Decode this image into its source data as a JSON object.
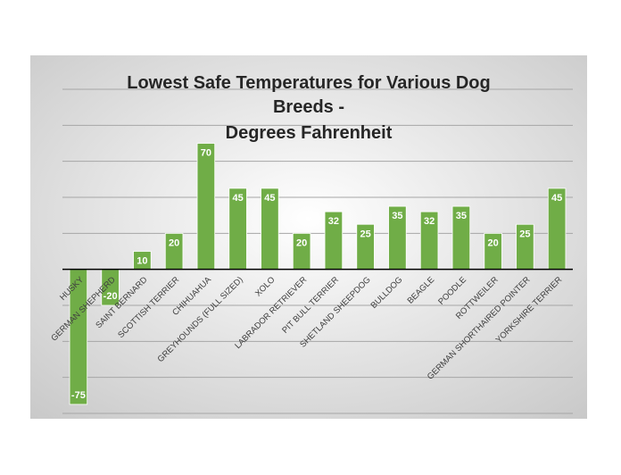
{
  "chart_data": {
    "type": "bar",
    "title_lines": [
      "Lowest Safe Temperatures for Various Dog",
      "Breeds -",
      "Degrees Fahrenheit"
    ],
    "categories": [
      "HUSKY",
      "GERMAN SHEPHERD",
      "SAINT BERNARD",
      "SCOTTISH TERRIER",
      "CHIHUAHUA",
      "GREYHOUNDS (FULL SIZED)",
      "XOLO",
      "LABRADOR RETRIEVER",
      "PIT BULL TERRIER",
      "SHETLAND SHEEPDOG",
      "BULLDOG",
      "BEAGLE",
      "POODLE",
      "ROTTWEILER",
      "GERMAN SHORTHAIRED POINTER",
      "YORKSHIRE TERRIER"
    ],
    "values": [
      -75,
      -20,
      10,
      20,
      70,
      45,
      45,
      20,
      32,
      25,
      35,
      32,
      35,
      20,
      25,
      45
    ],
    "value_labels": [
      "-75",
      "-20",
      "10",
      "20",
      "70",
      "45",
      "45",
      "20",
      "32",
      "25",
      "35",
      "32",
      "35",
      "20",
      "25",
      "45"
    ],
    "ylim": [
      -80,
      100
    ],
    "gridline_step": 20,
    "grid": true,
    "tick_labels_shown": false,
    "legend": "none",
    "colors": {
      "bar": "#70ad47",
      "bar_border": "#ffffff",
      "value_label": "#ffffff",
      "background_light": "#ffffff",
      "background_dark": "#c8c8c8",
      "gridline": "#a6a6a6",
      "axis": "#000000",
      "title": "#262626"
    }
  }
}
